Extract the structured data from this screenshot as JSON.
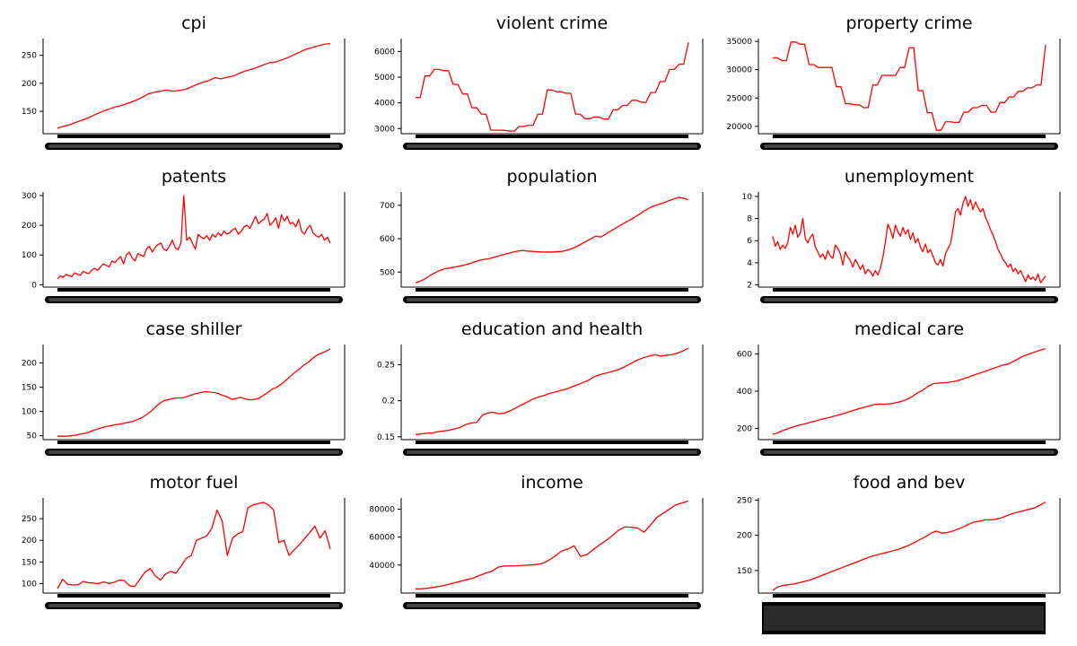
{
  "chart_data": [
    {
      "type": "line",
      "title": "cpi",
      "ylim": [
        110,
        280
      ],
      "yticks": [
        150,
        200,
        250
      ],
      "series": [
        {
          "values": [
            120,
            123,
            126,
            130,
            134,
            138,
            143,
            148,
            152,
            156,
            159,
            162,
            166,
            170,
            175,
            181,
            184,
            186,
            188,
            186,
            187,
            189,
            193,
            198,
            202,
            205,
            210,
            208,
            211,
            213,
            218,
            222,
            225,
            229,
            233,
            237,
            238,
            242,
            246,
            251,
            256,
            261,
            264,
            267,
            270,
            271
          ]
        }
      ]
    },
    {
      "type": "line",
      "title": "violent crime",
      "ylim": [
        2800,
        6500
      ],
      "yticks": [
        3000,
        4000,
        5000,
        6000
      ],
      "series": [
        {
          "values": [
            4210,
            4210,
            5050,
            5050,
            5300,
            5300,
            5250,
            5250,
            4720,
            4720,
            4350,
            4350,
            3810,
            3810,
            3560,
            3560,
            2940,
            2940,
            2930,
            2930,
            2900,
            2900,
            3080,
            3080,
            3130,
            3130,
            3560,
            3560,
            4500,
            4500,
            4430,
            4430,
            4370,
            4370,
            3560,
            3560,
            3380,
            3380,
            3450,
            3450,
            3370,
            3370,
            3730,
            3730,
            3900,
            3900,
            4100,
            4100,
            4020,
            4020,
            4400,
            4400,
            4830,
            4830,
            5300,
            5300,
            5500,
            5500,
            6350
          ]
        }
      ]
    },
    {
      "type": "line",
      "title": "property crime",
      "ylim": [
        18700,
        35500
      ],
      "yticks": [
        20000,
        25000,
        30000,
        35000
      ],
      "series": [
        {
          "values": [
            32100,
            32100,
            31600,
            31600,
            34900,
            34900,
            34500,
            34500,
            30900,
            30900,
            30400,
            30400,
            30400,
            30400,
            27000,
            27000,
            24000,
            24000,
            23800,
            23800,
            23300,
            23300,
            27300,
            27300,
            29000,
            29000,
            29000,
            29000,
            30400,
            30400,
            33900,
            33900,
            26300,
            26300,
            22400,
            22400,
            19300,
            19300,
            20800,
            20800,
            20700,
            20700,
            22500,
            22500,
            23300,
            23300,
            23700,
            23700,
            22500,
            22500,
            24200,
            24200,
            25200,
            25200,
            26200,
            26200,
            26800,
            26800,
            27300,
            27300,
            34400
          ]
        }
      ]
    },
    {
      "type": "line",
      "title": "patents",
      "ylim": [
        -8,
        312
      ],
      "yticks": [
        0,
        100,
        200,
        300
      ],
      "series": [
        {
          "values": [
            20,
            30,
            25,
            35,
            30,
            28,
            40,
            35,
            32,
            45,
            40,
            38,
            50,
            55,
            48,
            60,
            70,
            65,
            60,
            80,
            75,
            85,
            95,
            70,
            100,
            110,
            90,
            80,
            105,
            100,
            95,
            120,
            130,
            110,
            125,
            135,
            140,
            120,
            115,
            130,
            150,
            125,
            118,
            140,
            300,
            150,
            160,
            140,
            120,
            170,
            160,
            155,
            165,
            150,
            170,
            160,
            175,
            165,
            180,
            170,
            175,
            185,
            190,
            170,
            180,
            195,
            200,
            190,
            210,
            230,
            205,
            215,
            220,
            240,
            200,
            210,
            225,
            190,
            235,
            215,
            230,
            205,
            210,
            195,
            220,
            180,
            170,
            190,
            200,
            175,
            165,
            160,
            170,
            150,
            160,
            140
          ]
        }
      ]
    },
    {
      "type": "line",
      "title": "population",
      "ylim": [
        455,
        740
      ],
      "yticks": [
        500,
        600,
        700
      ],
      "series": [
        {
          "values": [
            468,
            473,
            480,
            490,
            498,
            505,
            510,
            512,
            515,
            518,
            521,
            525,
            530,
            535,
            538,
            540,
            544,
            548,
            552,
            556,
            560,
            563,
            565,
            563,
            562,
            561,
            560,
            560,
            560,
            561,
            562,
            565,
            570,
            576,
            584,
            592,
            600,
            608,
            605,
            613,
            623,
            631,
            640,
            648,
            656,
            665,
            674,
            684,
            692,
            699,
            703,
            708,
            714,
            719,
            724,
            721,
            717
          ]
        }
      ]
    },
    {
      "type": "line",
      "title": "unemployment",
      "ylim": [
        1.8,
        10.4
      ],
      "yticks": [
        2,
        4,
        6,
        8,
        10
      ],
      "series": [
        {
          "values": [
            6.4,
            5.5,
            5.9,
            5.2,
            5.6,
            5.3,
            5.8,
            7.2,
            6.6,
            7.4,
            6.3,
            6.7,
            8.0,
            6.2,
            5.8,
            6.3,
            6.6,
            5.4,
            5.0,
            4.5,
            4.8,
            4.3,
            5.1,
            4.6,
            4.4,
            5.6,
            5.3,
            4.8,
            3.8,
            5.0,
            4.5,
            4.2,
            3.6,
            4.3,
            3.9,
            3.4,
            3.8,
            3.0,
            3.4,
            3.2,
            2.8,
            3.3,
            2.9,
            3.5,
            4.5,
            5.9,
            7.5,
            7.0,
            6.2,
            7.4,
            6.8,
            6.4,
            7.2,
            6.6,
            7.0,
            6.1,
            6.7,
            5.8,
            6.2,
            5.4,
            5.0,
            5.7,
            4.9,
            5.2,
            4.6,
            4.0,
            3.8,
            4.3,
            3.7,
            4.8,
            5.3,
            5.7,
            7.0,
            8.6,
            8.9,
            8.3,
            9.4,
            10.0,
            9.1,
            9.7,
            8.8,
            9.5,
            9.0,
            8.6,
            8.9,
            8.1,
            7.6,
            7.0,
            6.5,
            5.9,
            5.2,
            4.8,
            4.3,
            4.0,
            3.6,
            3.9,
            3.2,
            3.5,
            3.0,
            3.3,
            2.8,
            2.3,
            2.9,
            2.5,
            2.7,
            2.4,
            3.0,
            2.2,
            2.5,
            2.8
          ]
        }
      ]
    },
    {
      "type": "line",
      "title": "case shiller",
      "ylim": [
        42,
        238
      ],
      "yticks": [
        50,
        100,
        150,
        200
      ],
      "series": [
        {
          "values": [
            49,
            49,
            49,
            50,
            51,
            53,
            55,
            57,
            61,
            64,
            67,
            69,
            71,
            73,
            74,
            76,
            78,
            80,
            84,
            88,
            94,
            101,
            110,
            118,
            123,
            125,
            127,
            128,
            128,
            131,
            134,
            137,
            139,
            141,
            140,
            139,
            137,
            133,
            130,
            125,
            127,
            129,
            126,
            124,
            125,
            127,
            133,
            139,
            146,
            150,
            156,
            164,
            172,
            180,
            187,
            195,
            201,
            209,
            216,
            220,
            224,
            229
          ]
        }
      ]
    },
    {
      "type": "line",
      "title": "education and health",
      "ylim": [
        0.146,
        0.278
      ],
      "yticks": [
        0.15,
        0.2,
        0.25
      ],
      "series": [
        {
          "values": [
            0.153,
            0.154,
            0.155,
            0.155,
            0.157,
            0.158,
            0.159,
            0.161,
            0.163,
            0.167,
            0.169,
            0.17,
            0.18,
            0.183,
            0.184,
            0.182,
            0.183,
            0.186,
            0.19,
            0.194,
            0.198,
            0.202,
            0.205,
            0.207,
            0.21,
            0.212,
            0.214,
            0.216,
            0.219,
            0.222,
            0.225,
            0.228,
            0.233,
            0.236,
            0.238,
            0.24,
            0.242,
            0.245,
            0.249,
            0.253,
            0.257,
            0.26,
            0.262,
            0.264,
            0.262,
            0.263,
            0.264,
            0.266,
            0.269,
            0.273
          ]
        }
      ]
    },
    {
      "type": "line",
      "title": "medical care",
      "ylim": [
        140,
        650
      ],
      "yticks": [
        200,
        400,
        600
      ],
      "series": [
        {
          "values": [
            168,
            178,
            190,
            200,
            210,
            218,
            225,
            233,
            240,
            248,
            255,
            262,
            270,
            278,
            287,
            296,
            305,
            313,
            320,
            328,
            331,
            330,
            333,
            338,
            345,
            355,
            370,
            390,
            405,
            425,
            440,
            443,
            445,
            448,
            452,
            460,
            470,
            480,
            490,
            500,
            510,
            520,
            530,
            540,
            545,
            560,
            575,
            590,
            600,
            610,
            620,
            628
          ]
        }
      ]
    },
    {
      "type": "line",
      "title": "motor fuel",
      "ylim": [
        78,
        298
      ],
      "yticks": [
        100,
        150,
        200,
        250
      ],
      "series": [
        {
          "values": [
            88,
            110,
            98,
            97,
            97,
            105,
            102,
            101,
            100,
            104,
            100,
            103,
            108,
            107,
            95,
            93,
            110,
            126,
            135,
            118,
            108,
            122,
            128,
            124,
            140,
            158,
            165,
            200,
            205,
            210,
            228,
            270,
            245,
            165,
            205,
            215,
            220,
            275,
            282,
            285,
            288,
            282,
            270,
            195,
            200,
            165,
            178,
            190,
            204,
            218,
            233,
            205,
            222,
            180
          ]
        }
      ]
    },
    {
      "type": "line",
      "title": "income",
      "ylim": [
        20000,
        88000
      ],
      "yticks": [
        40000,
        60000,
        80000
      ],
      "series": [
        {
          "values": [
            23000,
            23100,
            23500,
            24200,
            25000,
            26000,
            27200,
            28300,
            29500,
            30500,
            32500,
            34200,
            35500,
            38500,
            39300,
            39400,
            39500,
            39800,
            40000,
            40400,
            41200,
            43500,
            46500,
            50000,
            51500,
            53800,
            46200,
            47500,
            51000,
            54500,
            57500,
            61000,
            65000,
            67300,
            67000,
            66500,
            63500,
            68500,
            74000,
            77000,
            80000,
            83000,
            84500,
            85800
          ]
        }
      ]
    },
    {
      "type": "line",
      "title": "food and bev",
      "ylim": [
        118,
        253
      ],
      "yticks": [
        150,
        200,
        250
      ],
      "series": [
        {
          "values": [
            122,
            127,
            129,
            130,
            131,
            133,
            135,
            137,
            140,
            143,
            146,
            149,
            152,
            155,
            158,
            161,
            164,
            167,
            170,
            172,
            174,
            176,
            178,
            180,
            183,
            186,
            190,
            194,
            198,
            203,
            206,
            203,
            204,
            206,
            209,
            212,
            216,
            219,
            220,
            222,
            222,
            223,
            225,
            228,
            231,
            233,
            235,
            237,
            239,
            243,
            247
          ]
        }
      ]
    }
  ]
}
